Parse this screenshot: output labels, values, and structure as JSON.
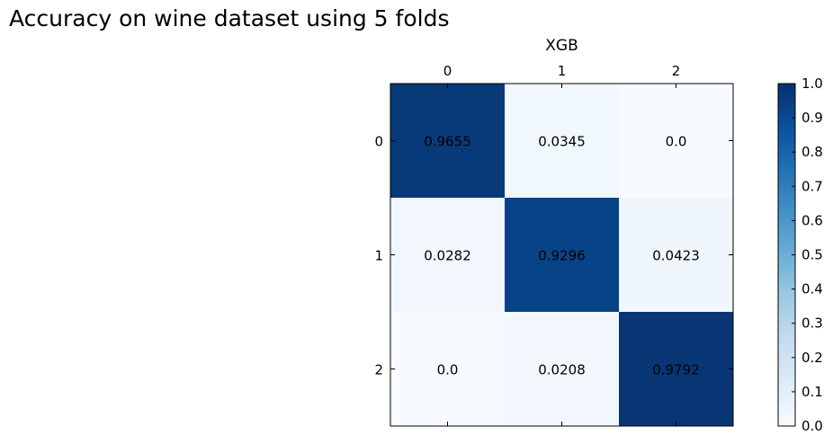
{
  "title": "Accuracy on wine dataset using 5 folds",
  "chart_data": {
    "type": "heatmap",
    "title": "XGB",
    "x_tick_position": "top",
    "x_categories": [
      "0",
      "1",
      "2"
    ],
    "y_categories": [
      "0",
      "1",
      "2"
    ],
    "values": [
      [
        0.9655,
        0.0345,
        0.0
      ],
      [
        0.0282,
        0.9296,
        0.0423
      ],
      [
        0.0,
        0.0208,
        0.9792
      ]
    ],
    "cell_labels": [
      [
        "0.9655",
        "0.0345",
        "0.0"
      ],
      [
        "0.0282",
        "0.9296",
        "0.0423"
      ],
      [
        "0.0",
        "0.0208",
        "0.9792"
      ]
    ],
    "colormap": "Blues",
    "colormap_stops": [
      "#f7fbff",
      "#deebf7",
      "#c6dbef",
      "#9ecae1",
      "#6baed6",
      "#4292c6",
      "#2171b5",
      "#08519c",
      "#08306b"
    ],
    "colorbar": {
      "range": [
        0.0,
        1.0
      ],
      "ticks": [
        "0.0",
        "0.1",
        "0.2",
        "0.3",
        "0.4",
        "0.5",
        "0.6",
        "0.7",
        "0.8",
        "0.9",
        "1.0"
      ]
    },
    "grid": false
  }
}
